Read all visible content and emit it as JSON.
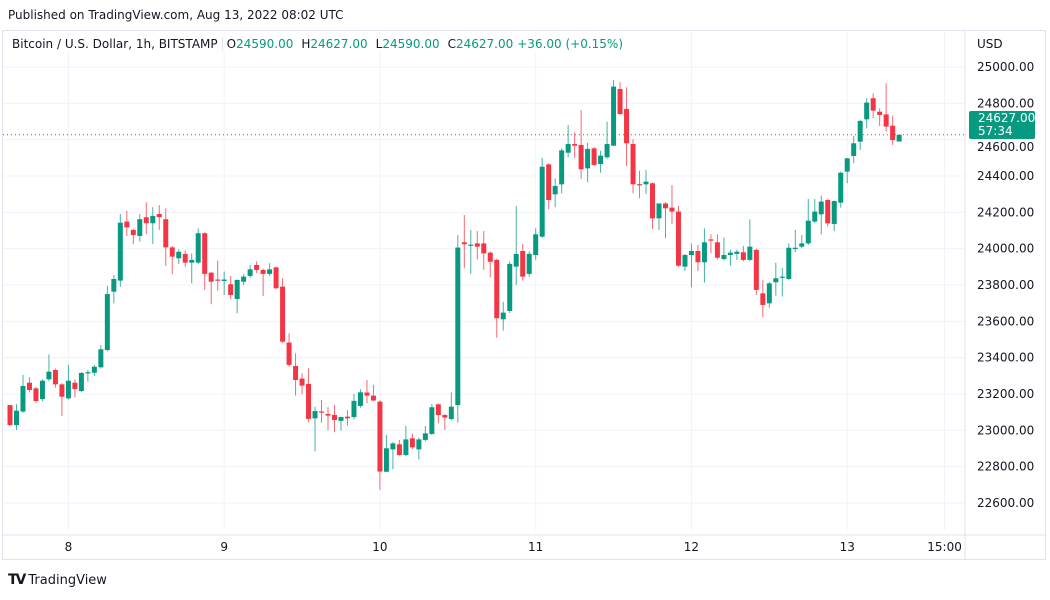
{
  "header": {
    "published": "Published on TradingView.com, Aug 13, 2022 08:02 UTC"
  },
  "legend": {
    "symbol": "Bitcoin / U.S. Dollar, 1h, BITSTAMP",
    "open_label": "O",
    "open": "24590.00",
    "high_label": "H",
    "high": "24627.00",
    "low_label": "L",
    "low": "24590.00",
    "close_label": "C",
    "close": "24627.00",
    "change": "+36.00 (+0.15%)"
  },
  "price_axis": {
    "currency": "USD",
    "last_price": "24627.00",
    "countdown": "57:34"
  },
  "footer": {
    "brand": "TradingView",
    "logo_text": "TV"
  },
  "colors": {
    "up": "#089981",
    "down": "#f23645",
    "grid": "#f0f3fa"
  },
  "chart_data": {
    "type": "candlestick",
    "title": "Bitcoin / U.S. Dollar, 1h, BITSTAMP",
    "interval": "1h",
    "ylim": [
      22500,
      25150
    ],
    "y_ticks": [
      22600,
      22800,
      23000,
      23200,
      23400,
      23600,
      23800,
      24000,
      24200,
      24400,
      24600,
      24800,
      25000
    ],
    "y_tick_labels": [
      "22600.00",
      "22800.00",
      "23000.00",
      "23200.00",
      "23400.00",
      "23600.00",
      "23800.00",
      "24000.00",
      "24200.00",
      "24400.00",
      "24600.00",
      "24800.00",
      "25000.00"
    ],
    "x_ticks": [
      {
        "index": 9,
        "label": "8"
      },
      {
        "index": 33,
        "label": "9"
      },
      {
        "index": 57,
        "label": "10"
      },
      {
        "index": 81,
        "label": "11"
      },
      {
        "index": 105,
        "label": "12"
      },
      {
        "index": 129,
        "label": "13"
      },
      {
        "index": 144,
        "label": "15:00"
      }
    ],
    "last_price": 24627,
    "candles_ohlc": [
      [
        23139,
        23139,
        23024,
        23029
      ],
      [
        23029,
        23143,
        23002,
        23108
      ],
      [
        23103,
        23305,
        23097,
        23244
      ],
      [
        23262,
        23292,
        23209,
        23222
      ],
      [
        23231,
        23240,
        23150,
        23161
      ],
      [
        23172,
        23281,
        23161,
        23273
      ],
      [
        23281,
        23418,
        23270,
        23323
      ],
      [
        23332,
        23340,
        23235,
        23253
      ],
      [
        23253,
        23260,
        23079,
        23185
      ],
      [
        23176,
        23360,
        23170,
        23273
      ],
      [
        23262,
        23280,
        23180,
        23227
      ],
      [
        23216,
        23320,
        23210,
        23316
      ],
      [
        23319,
        23332,
        23268,
        23320
      ],
      [
        23317,
        23360,
        23300,
        23350
      ],
      [
        23347,
        23470,
        23340,
        23446
      ],
      [
        23442,
        23796,
        23435,
        23750
      ],
      [
        23763,
        23855,
        23699,
        23833
      ],
      [
        23824,
        24191,
        23791,
        24143
      ],
      [
        24149,
        24209,
        24070,
        24117
      ],
      [
        24103,
        24110,
        24026,
        24075
      ],
      [
        24070,
        24191,
        24039,
        24162
      ],
      [
        24173,
        24255,
        24081,
        24140
      ],
      [
        24140,
        24228,
        24026,
        24180
      ],
      [
        24191,
        24240,
        24103,
        24173
      ],
      [
        24162,
        24222,
        23906,
        24007
      ],
      [
        24007,
        24015,
        23859,
        23956
      ],
      [
        23947,
        23997,
        23916,
        23983
      ],
      [
        23971,
        23990,
        23900,
        23923
      ],
      [
        23923,
        23974,
        23809,
        23938
      ],
      [
        23923,
        24112,
        23915,
        24085
      ],
      [
        24085,
        24090,
        23773,
        23861
      ],
      [
        23868,
        23870,
        23694,
        23818
      ],
      [
        23830,
        23934,
        23769,
        23826
      ],
      [
        23822,
        23874,
        23745,
        23830
      ],
      [
        23804,
        23850,
        23723,
        23745
      ],
      [
        23723,
        23830,
        23644,
        23828
      ],
      [
        23818,
        23860,
        23800,
        23846
      ],
      [
        23850,
        23910,
        23840,
        23886
      ],
      [
        23910,
        23930,
        23865,
        23883
      ],
      [
        23883,
        23890,
        23740,
        23861
      ],
      [
        23861,
        23920,
        23850,
        23886
      ],
      [
        23897,
        23900,
        23775,
        23782
      ],
      [
        23791,
        23837,
        23480,
        23488
      ],
      [
        23483,
        23534,
        23350,
        23360
      ],
      [
        23354,
        23424,
        23191,
        23277
      ],
      [
        23285,
        23314,
        23200,
        23246
      ],
      [
        23255,
        23341,
        23044,
        23063
      ],
      [
        23066,
        23130,
        22883,
        23106
      ],
      [
        23104,
        23167,
        23042,
        23100
      ],
      [
        23090,
        23127,
        23000,
        23081
      ],
      [
        23085,
        23140,
        22989,
        23057
      ],
      [
        23052,
        23075,
        22998,
        23073
      ],
      [
        23075,
        23112,
        23026,
        23066
      ],
      [
        23073,
        23200,
        23060,
        23162
      ],
      [
        23134,
        23226,
        23125,
        23209
      ],
      [
        23208,
        23277,
        23149,
        23191
      ],
      [
        23191,
        23250,
        23160,
        23164
      ],
      [
        23158,
        23165,
        22672,
        22773
      ],
      [
        22772,
        22974,
        22770,
        22901
      ],
      [
        22895,
        22935,
        22785,
        22928
      ],
      [
        22923,
        22947,
        22860,
        22864
      ],
      [
        22864,
        23024,
        22858,
        22950
      ],
      [
        22956,
        22983,
        22895,
        22906
      ],
      [
        22895,
        22960,
        22840,
        22950
      ],
      [
        22947,
        23024,
        22940,
        22983
      ],
      [
        22980,
        23145,
        22975,
        23127
      ],
      [
        23143,
        23148,
        23039,
        23084
      ],
      [
        23084,
        23090,
        23002,
        23070
      ],
      [
        23062,
        23209,
        23055,
        23130
      ],
      [
        23139,
        24075,
        23042,
        24006
      ],
      [
        24035,
        24185,
        23892,
        24024
      ],
      [
        24020,
        24103,
        23861,
        24022
      ],
      [
        24029,
        24097,
        23941,
        24011
      ],
      [
        24029,
        24097,
        23883,
        23974
      ],
      [
        23978,
        23985,
        23842,
        23928
      ],
      [
        23938,
        23945,
        23510,
        23617
      ],
      [
        23611,
        23708,
        23549,
        23648
      ],
      [
        23657,
        23930,
        23645,
        23916
      ],
      [
        23901,
        24235,
        23800,
        23971
      ],
      [
        23987,
        24026,
        23824,
        23846
      ],
      [
        23861,
        23985,
        23846,
        23971
      ],
      [
        23965,
        24112,
        23938,
        24079
      ],
      [
        24066,
        24501,
        24060,
        24451
      ],
      [
        24464,
        24470,
        24217,
        24268
      ],
      [
        24299,
        24387,
        24228,
        24345
      ],
      [
        24354,
        24552,
        24305,
        24541
      ],
      [
        24528,
        24681,
        24503,
        24576
      ],
      [
        24576,
        24640,
        24501,
        24567
      ],
      [
        24571,
        24763,
        24384,
        24437
      ],
      [
        24442,
        24583,
        24365,
        24549
      ],
      [
        24552,
        24560,
        24455,
        24461
      ],
      [
        24466,
        24539,
        24418,
        24512
      ],
      [
        24503,
        24699,
        24495,
        24576
      ],
      [
        24567,
        24928,
        24565,
        24892
      ],
      [
        24879,
        24916,
        24735,
        24741
      ],
      [
        24769,
        24888,
        24455,
        24580
      ],
      [
        24576,
        24602,
        24305,
        24354
      ],
      [
        24355,
        24429,
        24277,
        24353
      ],
      [
        24354,
        24433,
        24301,
        24369
      ],
      [
        24360,
        24365,
        24108,
        24167
      ],
      [
        24167,
        24170,
        24103,
        24249
      ],
      [
        24249,
        24255,
        24057,
        24222
      ],
      [
        24226,
        24350,
        24134,
        24204
      ],
      [
        24204,
        24235,
        23900,
        23906
      ],
      [
        23901,
        23970,
        23877,
        23965
      ],
      [
        23965,
        24029,
        23787,
        23987
      ],
      [
        23987,
        24020,
        23877,
        23925
      ],
      [
        23925,
        24112,
        23813,
        24035
      ],
      [
        24051,
        24079,
        23974,
        24044
      ],
      [
        24035,
        24079,
        23940,
        23950
      ],
      [
        23943,
        24061,
        23935,
        23965
      ],
      [
        23965,
        23995,
        23907,
        23978
      ],
      [
        23971,
        23995,
        23938,
        23983
      ],
      [
        23980,
        24015,
        23930,
        23938
      ],
      [
        23938,
        24161,
        23930,
        24011
      ],
      [
        23993,
        24000,
        23745,
        23773
      ],
      [
        23754,
        23827,
        23622,
        23690
      ],
      [
        23699,
        23818,
        23675,
        23809
      ],
      [
        23815,
        23923,
        23741,
        23837
      ],
      [
        23840,
        23893,
        23736,
        23846
      ],
      [
        23833,
        24029,
        23828,
        24005
      ],
      [
        23998,
        24103,
        23980,
        24005
      ],
      [
        24011,
        24075,
        24002,
        24029
      ],
      [
        24029,
        24273,
        24020,
        24154
      ],
      [
        24149,
        24273,
        24140,
        24204
      ],
      [
        24189,
        24292,
        24079,
        24259
      ],
      [
        24268,
        24275,
        24121,
        24139
      ],
      [
        24136,
        24265,
        24097,
        24262
      ],
      [
        24253,
        24425,
        24226,
        24418
      ],
      [
        24424,
        24500,
        24360,
        24497
      ],
      [
        24510,
        24620,
        24470,
        24580
      ],
      [
        24589,
        24710,
        24543,
        24703
      ],
      [
        24712,
        24828,
        24662,
        24804
      ],
      [
        24828,
        24855,
        24718,
        24760
      ],
      [
        24754,
        24773,
        24675,
        24736
      ],
      [
        24739,
        24910,
        24644,
        24672
      ],
      [
        24677,
        24732,
        24571,
        24598
      ],
      [
        24590,
        24627,
        24590,
        24627
      ]
    ]
  }
}
